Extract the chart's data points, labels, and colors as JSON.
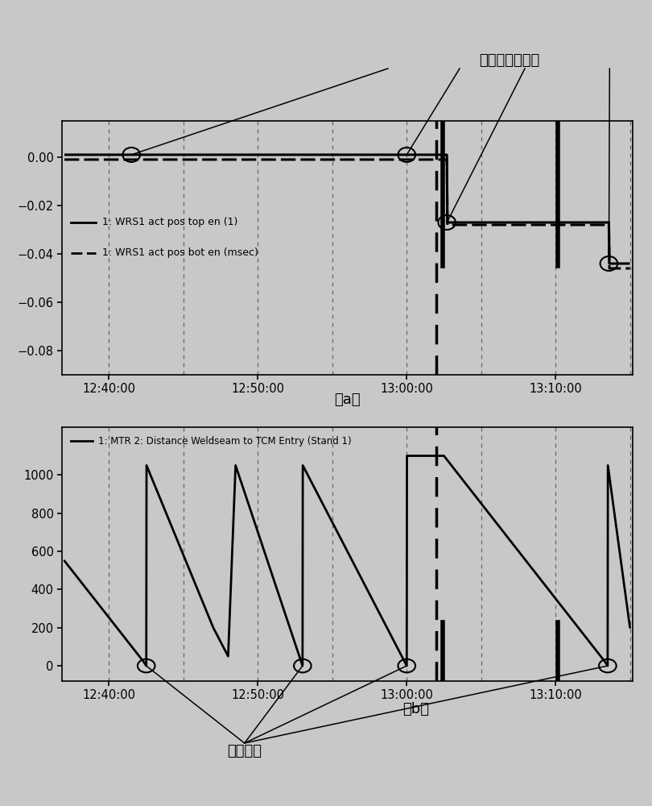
{
  "title_top": "工作辊窜动到位",
  "label_a": "（a）",
  "label_b": "（b）",
  "annotation_bottom": "焊缝位置",
  "legend_top_line1": "1: WRS1 act pos top en (1)",
  "legend_top_line2": "1: WRS1 act pos bot en (msec)",
  "legend_bottom": "1: MTR 2: Distance Weldseam to TCM Entry (Stand 1)",
  "x_ticks_labels": [
    "12:40:00",
    "12:50:00",
    "13:00:00",
    "13:10:00"
  ],
  "bg_color": "#c8c8c8",
  "plot_bg_color": "#c8c8c8",
  "line_color": "#000000",
  "grid_color": "#888888",
  "plot_a_ylim": [
    -0.09,
    0.015
  ],
  "plot_a_yticks": [
    0,
    -0.02,
    -0.04,
    -0.06,
    -0.08
  ],
  "plot_b_ylim": [
    -80,
    1250
  ],
  "plot_b_yticks": [
    0,
    200,
    400,
    600,
    800,
    1000
  ]
}
